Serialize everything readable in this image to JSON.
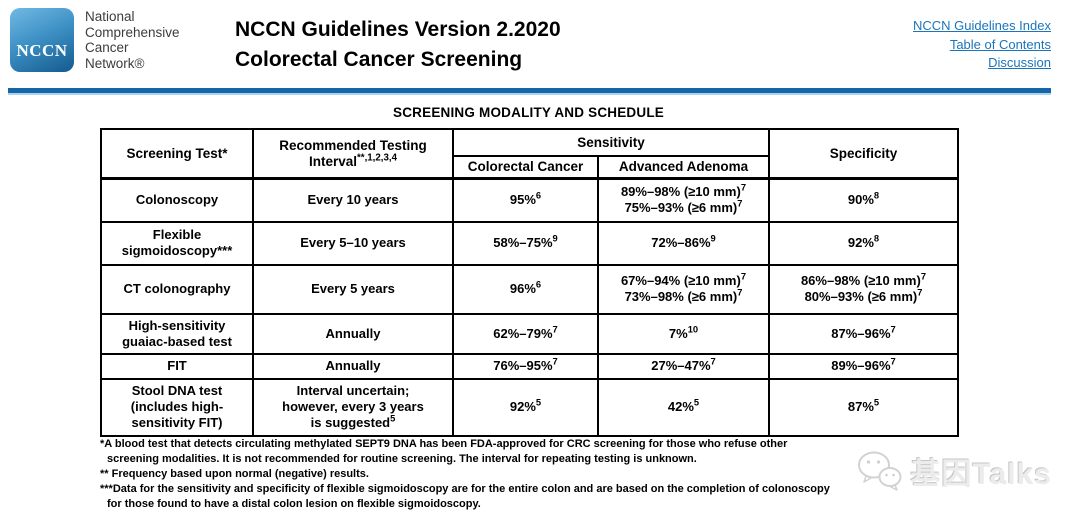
{
  "brand": {
    "logo_text": "NCCN",
    "name_lines": [
      "National",
      "Comprehensive",
      "Cancer",
      "Network®"
    ]
  },
  "header": {
    "title_line1": "NCCN Guidelines Version 2.2020",
    "title_line2": "Colorectal Cancer Screening",
    "links": [
      "NCCN Guidelines Index",
      "Table of Contents",
      "Discussion"
    ]
  },
  "section": {
    "title": "SCREENING MODALITY AND SCHEDULE"
  },
  "table": {
    "headers": {
      "screening_test": "Screening Test*",
      "interval": "Recommended Testing\nInterval^{**,1,2,3,4}",
      "sensitivity": "Sensitivity",
      "colorectal_cancer": "Colorectal Cancer",
      "advanced_adenoma": "Advanced Adenoma",
      "specificity": "Specificity"
    },
    "rows": [
      {
        "test": "Colonoscopy",
        "interval": "Every 10 years",
        "sens_crc": "95%^{6}",
        "sens_aa": "89%–98% (≥10 mm)^{7}\n75%–93% (≥6 mm)^{7}",
        "spec": "90%^{8}"
      },
      {
        "test": "Flexible\nsigmoidoscopy***",
        "interval": "Every 5–10 years",
        "sens_crc": "58%–75%^{9}",
        "sens_aa": "72%–86%^{9}",
        "spec": "92%^{8}"
      },
      {
        "test": "CT colonography",
        "interval": "Every 5 years",
        "sens_crc": "96%^{6}",
        "sens_aa": "67%–94% (≥10 mm)^{7}\n73%–98% (≥6 mm)^{7}",
        "spec": "86%–98% (≥10 mm)^{7}\n80%–93% (≥6 mm)^{7}"
      },
      {
        "test": "High-sensitivity\nguaiac-based test",
        "interval": "Annually",
        "sens_crc": "62%–79%^{7}",
        "sens_aa": "7%^{10}",
        "spec": "87%–96%^{7}"
      },
      {
        "test": "FIT",
        "interval": "Annually",
        "sens_crc": "76%–95%^{7}",
        "sens_aa": "27%–47%^{7}",
        "spec": "89%–96%^{7}"
      },
      {
        "test": "Stool DNA test\n(includes high-\nsensitivity FIT)",
        "interval": "Interval uncertain;\nhowever, every 3 years\nis suggested^{5}",
        "sens_crc": "92%^{5}",
        "sens_aa": "42%^{5}",
        "spec": "87%^{5}"
      }
    ]
  },
  "footnotes": {
    "lines": [
      "*A blood test that detects circulating methylated SEPT9 DNA has been FDA-approved for CRC screening for those who refuse other",
      "screening modalities. It is not recommended for routine screening. The interval for repeating testing is unknown.",
      "** Frequency based upon normal (negative) results.",
      "***Data for the sensitivity and specificity of flexible sigmoidoscopy are for the entire colon and are based on the completion of colonoscopy",
      "for those found to have a distal colon lesion on flexible sigmoidoscopy."
    ]
  },
  "watermark": {
    "text": "基因Talks"
  },
  "colors": {
    "rule_blue": "#1565a7",
    "rule_light_blue": "#a9d3ee",
    "link_blue": "#1b75bc",
    "logo_blue_top": "#72b9e4",
    "logo_blue_bottom": "#135a90"
  }
}
